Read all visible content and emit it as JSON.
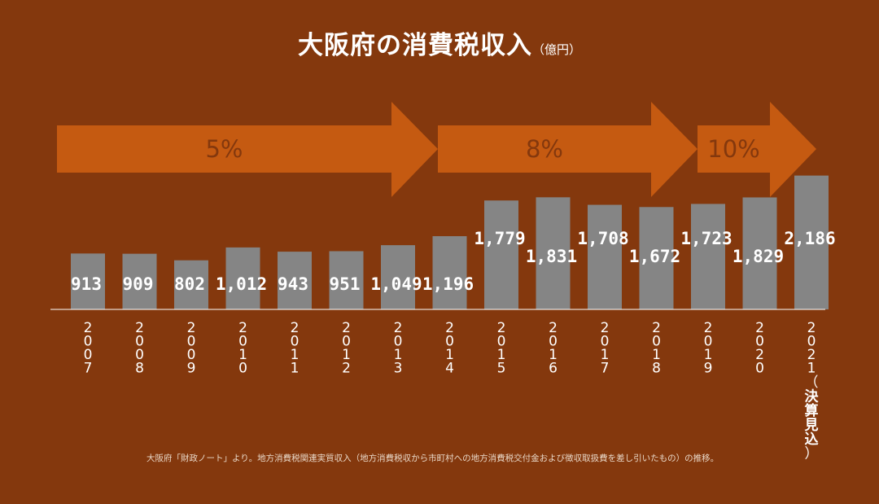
{
  "title": "大阪府の消費税収入",
  "unit": "（億円）",
  "source_note": "大阪府「財政ノート」より。地方消費税関連実質収入（地方消費税収から市町村への地方消費税交付金および徴収取扱費を差し引いたもの）の推移。",
  "colors": {
    "background": "#84380d",
    "arrow": "#c55a11",
    "arrow_text": "#84380d",
    "bar": "#858585",
    "value_label": "#ffffff",
    "year_label": "#ffffff",
    "baseline": "#ffffff"
  },
  "rate_periods": [
    {
      "label": "5%",
      "from": "2007",
      "to": "2013"
    },
    {
      "label": "8%",
      "from": "2015",
      "to": "2019"
    },
    {
      "label": "10%",
      "from": "2020",
      "to": "2021"
    }
  ],
  "chart_data": {
    "type": "bar",
    "title": "大阪府の消費税収入",
    "unit": "億円",
    "categories": [
      "2007",
      "2008",
      "2009",
      "2010",
      "2011",
      "2012",
      "2013",
      "2014",
      "2015",
      "2016",
      "2017",
      "2018",
      "2019",
      "2020",
      "2021"
    ],
    "category_notes": {
      "2021": "（決算見込）"
    },
    "values": [
      913,
      909,
      802,
      1012,
      943,
      951,
      1049,
      1196,
      1779,
      1831,
      1708,
      1672,
      1723,
      1829,
      2186
    ],
    "value_labels": [
      "913",
      "909",
      "802",
      "1,012",
      "943",
      "951",
      "1,049",
      "1,196",
      "1,779",
      "1,831",
      "1,708",
      "1,672",
      "1,723",
      "1,829",
      "2,186"
    ],
    "grid": false,
    "legend": "none"
  }
}
